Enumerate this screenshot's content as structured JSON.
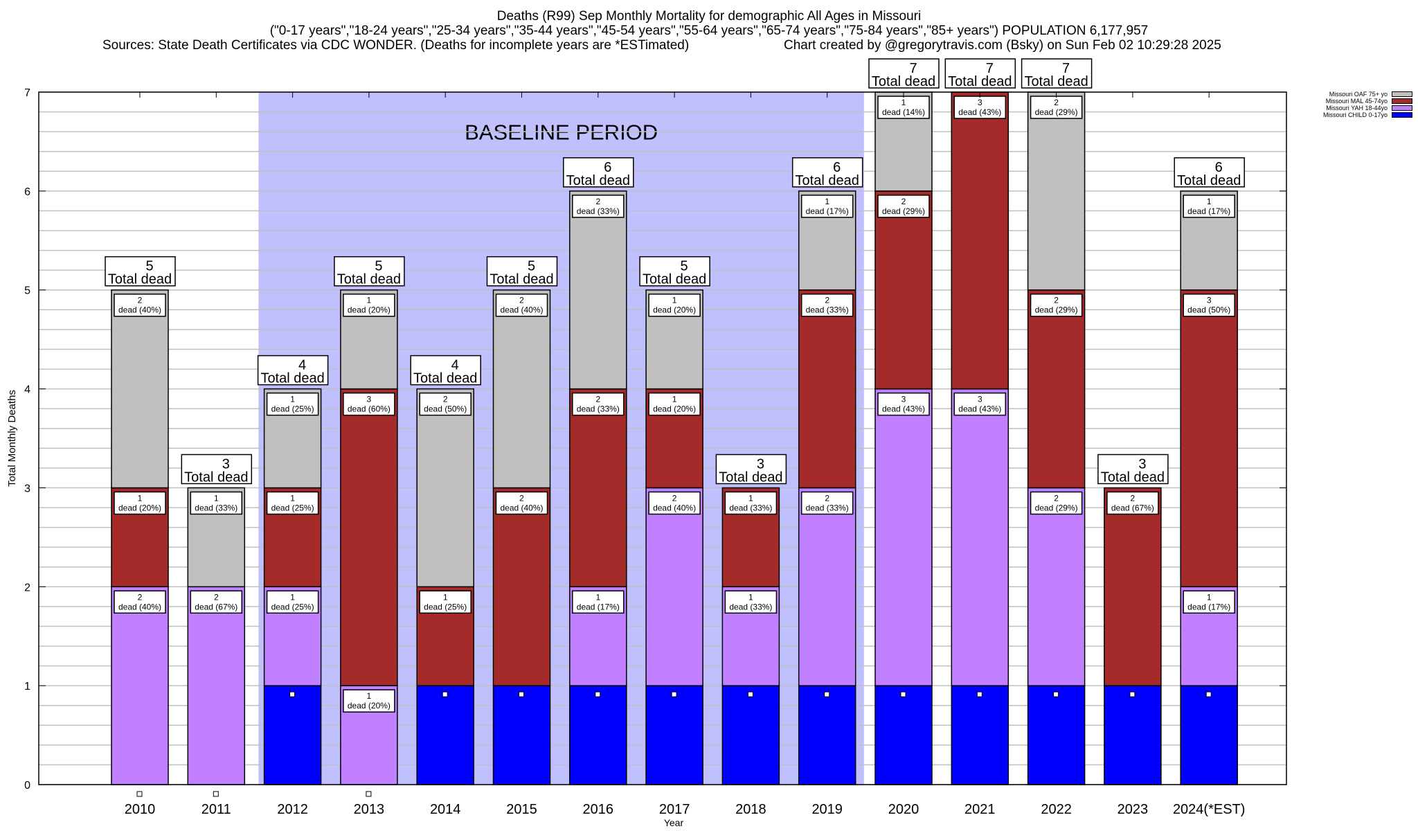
{
  "header": {
    "title": "Deaths (R99) Sep Monthly Mortality for demographic All Ages in Missouri",
    "subtitle": "(\"0-17 years\",\"18-24 years\",\"25-34 years\",\"35-44 years\",\"45-54 years\",\"55-64 years\",\"65-74 years\",\"75-84 years\",\"85+ years\") POPULATION 6,177,957",
    "sources": "Sources: State Death Certificates via CDC WONDER. (Deaths for incomplete years are *ESTimated)",
    "credit": "Chart created by @gregorytravis.com (Bsky) on Sun Feb 02 10:29:28 2025"
  },
  "chart_data": {
    "type": "bar",
    "stacked": true,
    "title": "Deaths (R99) Sep Monthly Mortality for demographic All Ages in Missouri",
    "xlabel": "Year",
    "ylabel": "Total Monthly Deaths",
    "ylim": [
      0,
      7
    ],
    "yticks": [
      0,
      1,
      2,
      3,
      4,
      5,
      6,
      7
    ],
    "minor_grid_step": 0.2,
    "grid": true,
    "legend_position": "top-right",
    "categories": [
      "2010",
      "2011",
      "2012",
      "2013",
      "2014",
      "2015",
      "2016",
      "2017",
      "2018",
      "2019",
      "2020",
      "2021",
      "2022",
      "2023",
      "2024(*EST)"
    ],
    "series": [
      {
        "name": "Missouri CHILD 0-17yo",
        "color": "#0000ff",
        "values": [
          0,
          0,
          1,
          0,
          1,
          1,
          1,
          1,
          1,
          1,
          1,
          1,
          1,
          1,
          1
        ]
      },
      {
        "name": "Missouri YAH 18-44yo",
        "color": "#c080ff",
        "values": [
          2,
          2,
          1,
          1,
          0,
          0,
          1,
          2,
          1,
          2,
          3,
          3,
          2,
          0,
          1
        ]
      },
      {
        "name": "Missouri MAL 45-74yo",
        "color": "#a52a2a",
        "values": [
          1,
          0,
          1,
          3,
          1,
          2,
          2,
          1,
          1,
          2,
          2,
          3,
          2,
          2,
          3
        ]
      },
      {
        "name": "Missouri OAF 75+ yo",
        "color": "#c0c0c0",
        "values": [
          2,
          1,
          1,
          1,
          2,
          2,
          2,
          1,
          0,
          1,
          1,
          0,
          2,
          0,
          1
        ]
      }
    ],
    "totals": [
      5,
      3,
      4,
      5,
      4,
      5,
      6,
      5,
      3,
      6,
      7,
      7,
      7,
      3,
      6
    ],
    "total_label_suffix": "Total dead",
    "segment_label_word": "dead",
    "annotations": [
      {
        "text": "BASELINE PERIOD",
        "x_range": [
          "2012",
          "2019"
        ],
        "shade_color": "#c0c0ff"
      }
    ]
  }
}
